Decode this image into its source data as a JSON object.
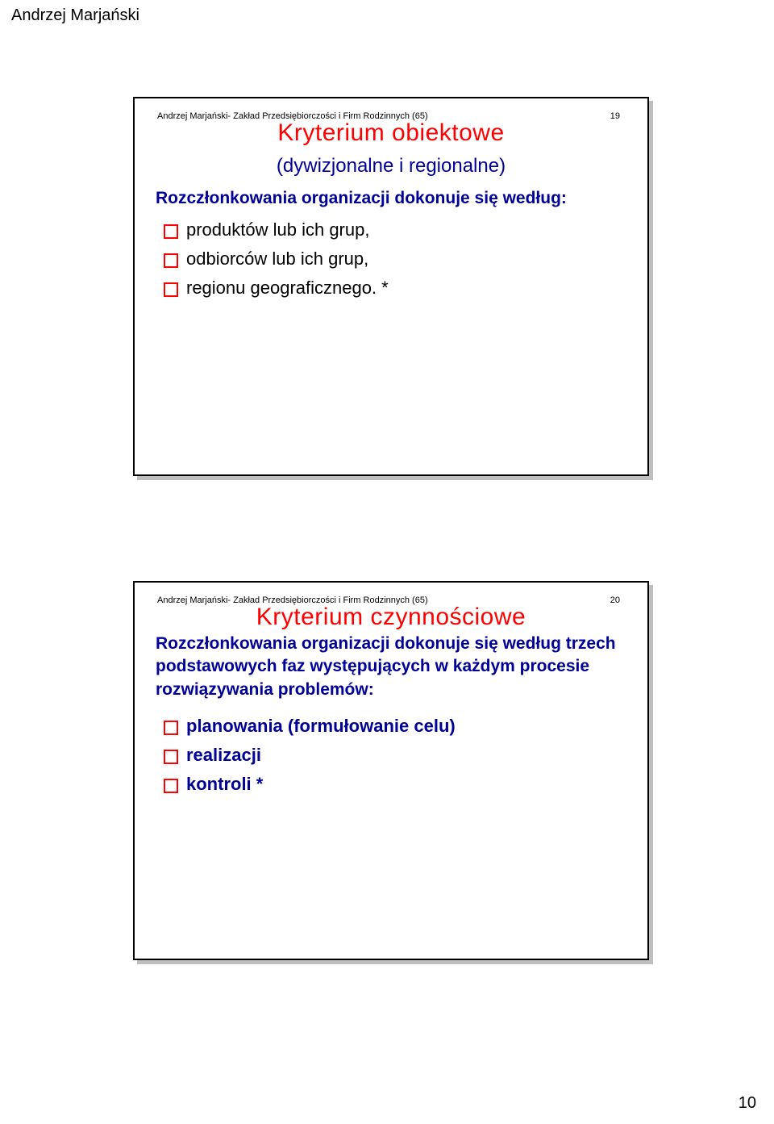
{
  "header_author": "Andrzej Marjański",
  "page_number": "10",
  "slide1": {
    "source": "Andrzej Marjański- Zakład Przedsiębiorczości i Firm Rodzinnych  (65)",
    "num": "19",
    "title": "Kryterium obiektowe",
    "subtitle": "(dywizjonalne i regionalne)",
    "intro": "Rozczłonkowania organizacji dokonuje się według:",
    "items": [
      "produktów lub ich grup,",
      "odbiorców lub ich grup,",
      "regionu geograficznego.  *"
    ]
  },
  "slide2": {
    "source": "Andrzej Marjański- Zakład Przedsiębiorczości i Firm Rodzinnych  (65)",
    "num": "20",
    "title": "Kryterium czynnościowe",
    "intro": "Rozczłonkowania organizacji dokonuje się według trzech podstawowych faz występujących w każdym procesie rozwiązywania problemów:",
    "items": [
      "planowania (formułowanie celu)",
      "realizacji",
      "kontroli  *"
    ]
  }
}
